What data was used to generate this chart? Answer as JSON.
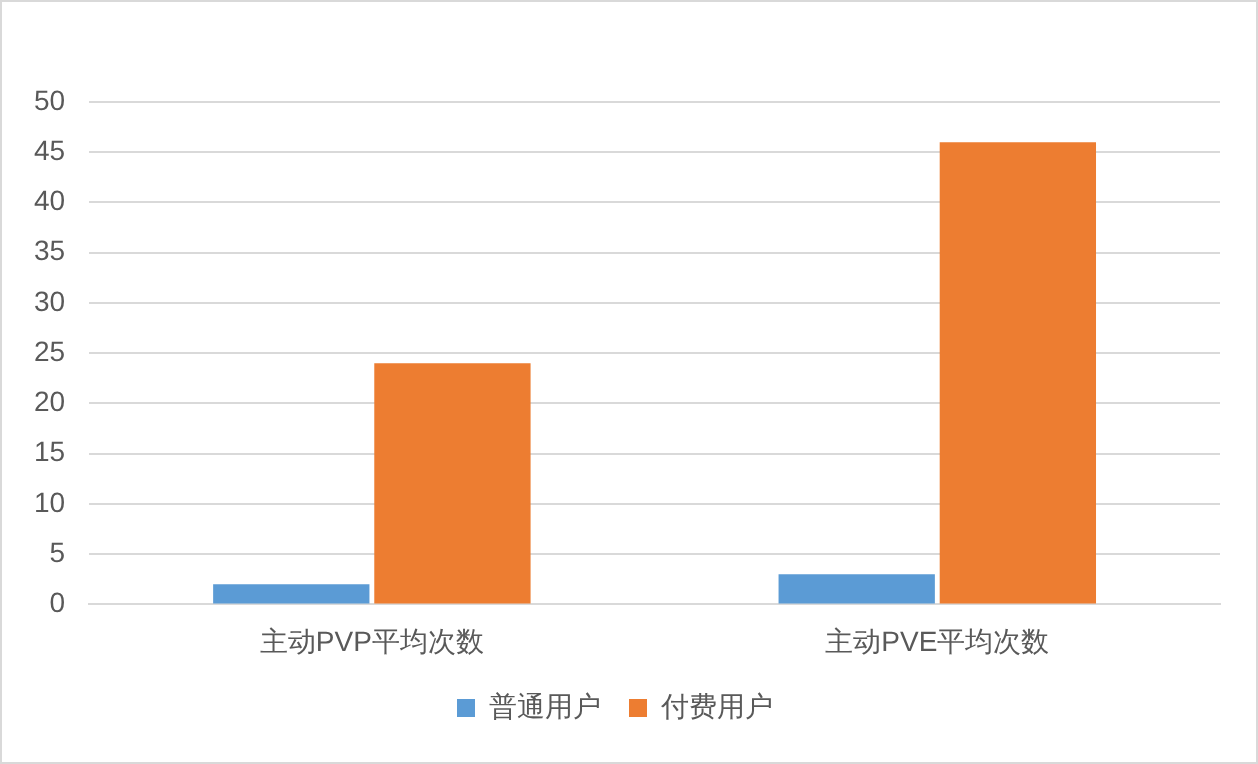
{
  "chart_data": {
    "type": "bar",
    "categories": [
      "主动PVP平均次数",
      "主动PVE平均次数"
    ],
    "series": [
      {
        "name": "普通用户",
        "color": "#5b9bd5",
        "values": [
          2,
          3
        ]
      },
      {
        "name": "付费用户",
        "color": "#ed7d31",
        "values": [
          24,
          46
        ]
      }
    ],
    "ylim": [
      0,
      50
    ],
    "yticks": [
      0,
      5,
      10,
      15,
      20,
      25,
      30,
      35,
      40,
      45,
      50
    ],
    "grid": "y",
    "legend": "bottom"
  }
}
